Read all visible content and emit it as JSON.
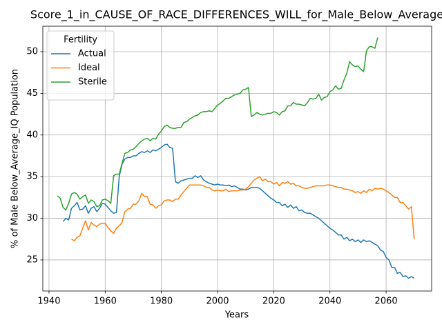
{
  "chart_data": {
    "type": "line",
    "title": "Score_1_in_CAUSE_OF_RACE_DIFFERENCES_WILL_for_Male_Below_Average",
    "xlabel": "Years",
    "ylabel": "% of Male Below_Average_IQ Population",
    "legend_title": "Fertility",
    "legend": "upper left",
    "grid": true,
    "xlim": [
      1937.8,
      2076.2
    ],
    "ylim": [
      21.27,
      53.06
    ],
    "xticks": [
      1940,
      1960,
      1980,
      2000,
      2020,
      2040,
      2060
    ],
    "yticks": [
      25,
      30,
      35,
      40,
      45,
      50
    ],
    "x": [
      1943,
      1944,
      1945,
      1946,
      1947,
      1948,
      1949,
      1950,
      1951,
      1952,
      1953,
      1954,
      1955,
      1956,
      1957,
      1958,
      1959,
      1960,
      1961,
      1962,
      1963,
      1964,
      1965,
      1966,
      1967,
      1968,
      1969,
      1970,
      1971,
      1972,
      1973,
      1974,
      1975,
      1976,
      1977,
      1978,
      1979,
      1980,
      1981,
      1982,
      1983,
      1984,
      1985,
      1986,
      1987,
      1988,
      1989,
      1990,
      1991,
      1992,
      1993,
      1994,
      1995,
      1996,
      1997,
      1998,
      1999,
      2000,
      2001,
      2002,
      2003,
      2004,
      2005,
      2006,
      2007,
      2008,
      2009,
      2010,
      2011,
      2012,
      2013,
      2014,
      2015,
      2016,
      2017,
      2018,
      2019,
      2020,
      2021,
      2022,
      2023,
      2024,
      2025,
      2026,
      2027,
      2028,
      2029,
      2030,
      2031,
      2032,
      2033,
      2034,
      2035,
      2036,
      2037,
      2038,
      2039,
      2040,
      2041,
      2042,
      2043,
      2044,
      2045,
      2046,
      2047,
      2048,
      2049,
      2050,
      2051,
      2052,
      2053,
      2054,
      2055,
      2056,
      2057,
      2058,
      2059,
      2060,
      2061,
      2062,
      2063,
      2064,
      2065,
      2066,
      2067,
      2068,
      2069,
      2070
    ],
    "series": [
      {
        "name": "Actual",
        "color": "#1f77b4",
        "values": [
          null,
          null,
          29.6,
          30.0,
          29.8,
          31.2,
          31.5,
          31.9,
          31.0,
          31.1,
          31.5,
          30.6,
          31.2,
          31.4,
          30.8,
          31.2,
          31.8,
          31.7,
          31.3,
          30.9,
          30.6,
          30.7,
          35.0,
          36.5,
          37.1,
          37.3,
          37.3,
          37.5,
          37.5,
          37.8,
          38.0,
          37.9,
          38.1,
          37.9,
          38.2,
          38.1,
          38.3,
          38.5,
          38.8,
          38.9,
          38.5,
          38.4,
          34.4,
          34.2,
          34.5,
          34.6,
          34.7,
          34.8,
          34.8,
          35.1,
          34.9,
          35.1,
          34.6,
          34.4,
          34.2,
          34.1,
          34.0,
          34.1,
          34.0,
          34.0,
          33.9,
          34.0,
          33.8,
          33.9,
          33.7,
          33.5,
          33.5,
          33.4,
          33.5,
          33.7,
          33.7,
          33.7,
          33.6,
          33.3,
          33.0,
          32.7,
          32.4,
          32.2,
          31.9,
          31.9,
          31.5,
          31.7,
          31.3,
          31.6,
          31.2,
          31.4,
          30.9,
          31.0,
          30.7,
          30.6,
          30.6,
          30.4,
          30.2,
          30.0,
          29.7,
          29.4,
          29.1,
          28.8,
          28.6,
          28.3,
          28.0,
          28.0,
          27.5,
          27.7,
          27.3,
          27.5,
          27.2,
          27.4,
          27.1,
          27.4,
          27.2,
          27.3,
          27.1,
          26.9,
          26.7,
          26.2,
          26.0,
          25.3,
          25.0,
          24.1,
          24.1,
          23.4,
          23.5,
          23.0,
          23.1,
          22.8,
          23.0,
          22.8
        ]
      },
      {
        "name": "Ideal",
        "color": "#ff7f0e",
        "values": [
          null,
          null,
          null,
          null,
          null,
          27.5,
          27.3,
          27.7,
          27.9,
          28.8,
          29.7,
          28.6,
          29.5,
          29.2,
          29.0,
          29.3,
          29.4,
          29.4,
          28.9,
          28.5,
          28.2,
          28.8,
          29.1,
          29.5,
          30.8,
          31.1,
          31.2,
          31.7,
          31.7,
          32.1,
          33.0,
          32.6,
          32.6,
          31.7,
          31.6,
          31.2,
          31.5,
          31.6,
          32.1,
          32.2,
          32.2,
          32.0,
          32.3,
          32.3,
          32.8,
          33.2,
          33.6,
          34.0,
          34.0,
          34.0,
          34.0,
          34.0,
          33.9,
          33.7,
          33.7,
          33.4,
          33.3,
          33.4,
          33.3,
          33.3,
          33.5,
          33.2,
          33.3,
          33.3,
          33.3,
          33.4,
          33.4,
          33.5,
          33.8,
          34.2,
          34.6,
          34.8,
          35.0,
          34.5,
          34.7,
          34.4,
          34.4,
          34.1,
          34.3,
          33.9,
          34.3,
          34.2,
          34.4,
          34.1,
          34.2,
          33.9,
          33.9,
          33.7,
          33.6,
          33.6,
          33.7,
          33.8,
          33.9,
          33.9,
          33.9,
          33.9,
          34.0,
          34.0,
          33.9,
          33.8,
          33.7,
          33.7,
          33.5,
          33.5,
          33.4,
          33.3,
          33.1,
          33.2,
          33.0,
          33.3,
          33.1,
          33.5,
          33.3,
          33.6,
          33.5,
          33.6,
          33.5,
          33.3,
          33.1,
          32.8,
          32.5,
          32.5,
          31.9,
          31.9,
          31.5,
          31.1,
          31.4,
          27.5
        ]
      },
      {
        "name": "Sterile",
        "color": "#2ca02c",
        "values": [
          32.7,
          32.4,
          31.3,
          31.0,
          31.8,
          32.9,
          33.1,
          32.9,
          32.3,
          32.6,
          32.8,
          31.8,
          32.2,
          32.0,
          31.4,
          31.5,
          32.2,
          32.3,
          32.1,
          31.8,
          35.1,
          35.3,
          35.3,
          36.6,
          37.8,
          37.9,
          38.2,
          38.3,
          38.6,
          39.0,
          39.3,
          39.5,
          39.6,
          39.3,
          39.6,
          39.5,
          40.1,
          40.5,
          41.0,
          41.2,
          40.9,
          40.8,
          40.8,
          40.9,
          40.9,
          41.5,
          41.6,
          41.9,
          42.1,
          42.3,
          42.4,
          42.7,
          42.8,
          42.8,
          42.9,
          42.8,
          43.2,
          43.6,
          43.8,
          44.1,
          44.4,
          44.4,
          44.6,
          44.8,
          44.9,
          45.0,
          45.4,
          45.5,
          45.7,
          42.2,
          42.4,
          42.7,
          42.5,
          42.4,
          42.5,
          42.6,
          42.6,
          42.8,
          42.7,
          42.4,
          42.8,
          42.9,
          43.5,
          43.5,
          43.9,
          43.7,
          43.7,
          43.6,
          43.5,
          43.9,
          44.4,
          44.3,
          44.4,
          44.9,
          44.2,
          44.5,
          44.6,
          45.2,
          45.4,
          45.9,
          45.5,
          45.6,
          46.6,
          47.4,
          48.8,
          48.4,
          48.2,
          48.3,
          47.9,
          47.6,
          50.1,
          50.6,
          50.6,
          50.4,
          51.7,
          null,
          null,
          null,
          null,
          null,
          null,
          null,
          null,
          null,
          null,
          null,
          null,
          null
        ]
      }
    ]
  }
}
